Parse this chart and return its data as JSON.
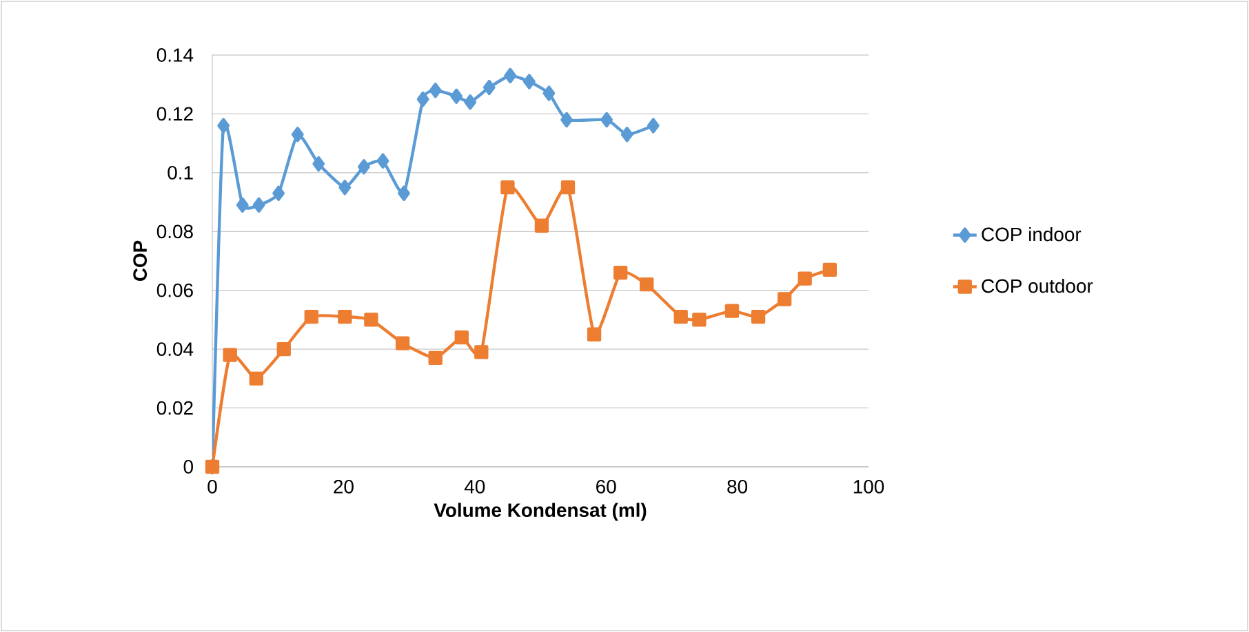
{
  "chart_data": {
    "type": "line",
    "xlabel": "Volume Kondensat (ml)",
    "ylabel": "COP",
    "xlim": [
      0,
      100
    ],
    "xticks": [
      0,
      20,
      40,
      60,
      80,
      100
    ],
    "ylim": [
      0,
      0.14
    ],
    "yticks": [
      0,
      0.02,
      0.04,
      0.06,
      0.08,
      0.1,
      0.12,
      0.14
    ],
    "grid": "y",
    "legend": "right",
    "series": [
      {
        "name": "COP indoor",
        "color": "#5b9bd5",
        "marker": "diamond",
        "x": [
          0,
          1.7,
          4.6,
          7.1,
          10.1,
          13,
          16.2,
          20.2,
          23.1,
          26,
          29.2,
          32.1,
          34,
          37.2,
          39.3,
          42.2,
          45.4,
          48.3,
          51.3,
          54,
          60.1,
          63.2,
          67.2
        ],
        "values": [
          0,
          0.116,
          0.089,
          0.089,
          0.093,
          0.113,
          0.103,
          0.095,
          0.102,
          0.104,
          0.093,
          0.125,
          0.128,
          0.126,
          0.124,
          0.129,
          0.133,
          0.131,
          0.127,
          0.118,
          0.118,
          0.113,
          0.116
        ]
      },
      {
        "name": "COP outdoor",
        "color": "#ed7d31",
        "marker": "square",
        "x": [
          0,
          2.7,
          6.7,
          10.9,
          15.1,
          20.2,
          24.2,
          29,
          34,
          38,
          41,
          45,
          50.2,
          54.2,
          58.2,
          62.2,
          66.2,
          71.4,
          74.2,
          79.2,
          83.2,
          87.2,
          90.3,
          94.1
        ],
        "values": [
          0,
          0.038,
          0.03,
          0.04,
          0.051,
          0.051,
          0.05,
          0.042,
          0.037,
          0.044,
          0.039,
          0.095,
          0.082,
          0.095,
          0.045,
          0.066,
          0.062,
          0.051,
          0.05,
          0.053,
          0.051,
          0.057,
          0.064,
          0.067
        ]
      }
    ]
  }
}
